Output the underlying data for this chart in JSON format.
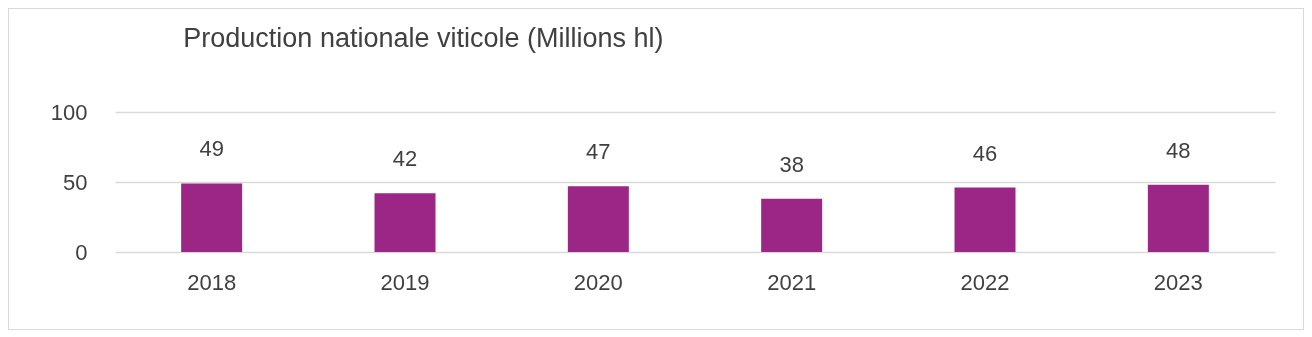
{
  "chart_data": {
    "type": "bar",
    "title": "Production nationale viticole (Millions hl)",
    "categories": [
      "2018",
      "2019",
      "2020",
      "2021",
      "2022",
      "2023"
    ],
    "values": [
      49,
      42,
      47,
      38,
      46,
      48
    ],
    "color": "#9b2685",
    "ylim": [
      0,
      100
    ],
    "yticks": [
      0,
      50,
      100
    ],
    "grid": true,
    "data_labels": true
  }
}
